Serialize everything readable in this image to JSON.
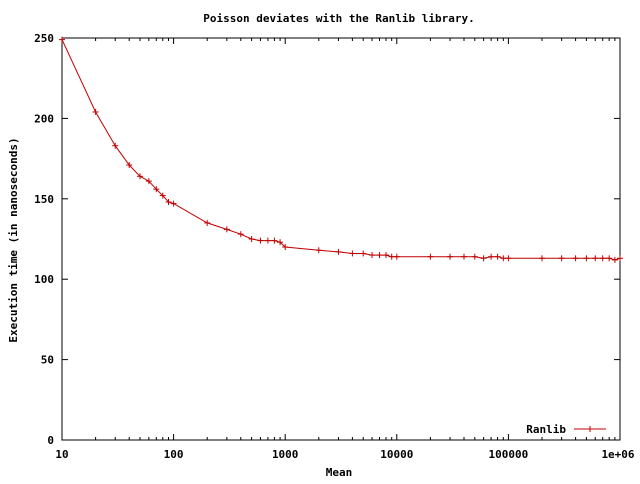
{
  "chart_data": {
    "type": "line",
    "title": "Poisson deviates with the Ranlib library.",
    "xlabel": "Mean",
    "ylabel": "Execution time (in nanoseconds)",
    "xscale": "log",
    "xlim": [
      10,
      1000000
    ],
    "ylim": [
      0,
      250
    ],
    "xticks": [
      10,
      100,
      1000,
      10000,
      100000,
      1000000
    ],
    "xtick_labels": [
      "10",
      "100",
      "1000",
      "10000",
      "100000",
      "1e+06"
    ],
    "yticks": [
      0,
      50,
      100,
      150,
      200,
      250
    ],
    "ytick_labels": [
      "0",
      "50",
      "100",
      "150",
      "200",
      "250"
    ],
    "grid": false,
    "legend": {
      "position": "bottom-right"
    },
    "series": [
      {
        "name": "Ranlib",
        "color": "#c00000",
        "marker": "plus",
        "x": [
          10,
          20,
          30,
          40,
          50,
          60,
          70,
          80,
          90,
          100,
          200,
          300,
          400,
          500,
          600,
          700,
          800,
          900,
          1000,
          2000,
          3000,
          4000,
          5000,
          6000,
          7000,
          8000,
          9000,
          10000,
          20000,
          30000,
          40000,
          50000,
          60000,
          70000,
          80000,
          90000,
          100000,
          200000,
          300000,
          400000,
          500000,
          600000,
          700000,
          800000,
          900000,
          1000000
        ],
        "y": [
          249,
          204,
          183,
          171,
          164,
          161,
          156,
          152,
          148,
          147,
          135,
          131,
          128,
          125,
          124,
          124,
          124,
          123,
          120,
          118,
          117,
          116,
          116,
          115,
          115,
          115,
          114,
          114,
          114,
          114,
          114,
          114,
          113,
          114,
          114,
          113,
          113,
          113,
          113,
          113,
          113,
          113,
          113,
          113,
          112,
          113
        ]
      }
    ]
  }
}
